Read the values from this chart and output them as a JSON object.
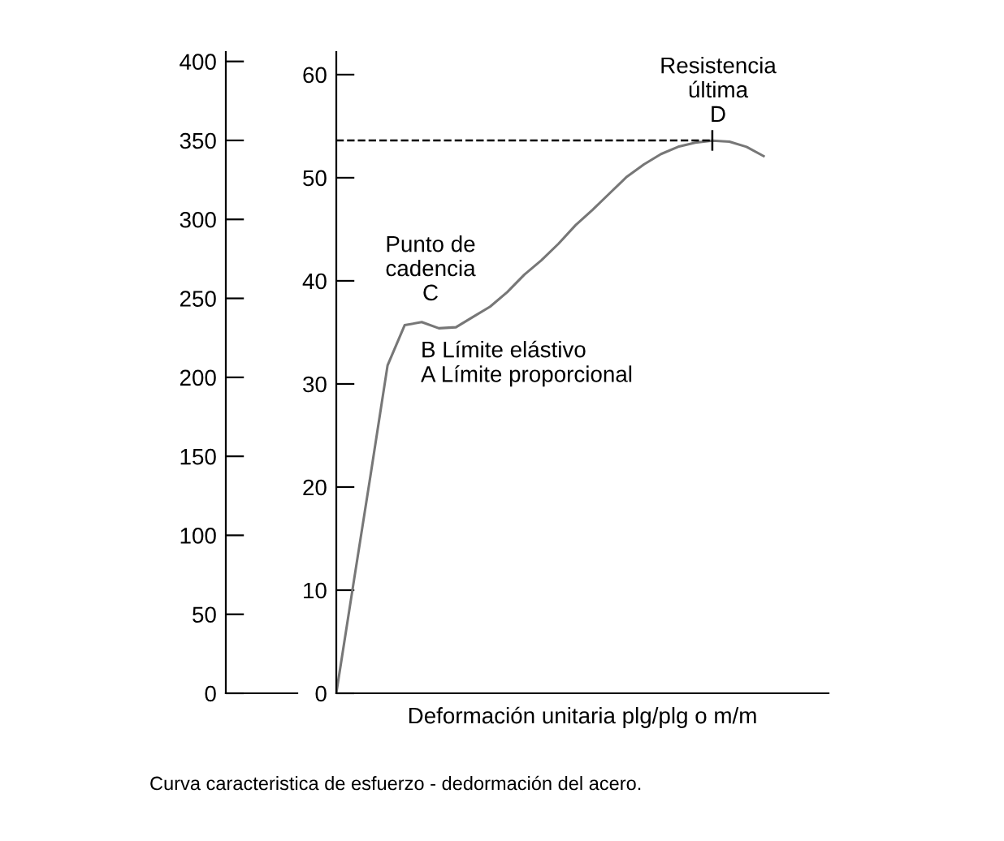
{
  "chart_data": {
    "type": "line",
    "xlabel": "Deformación unitaria plg/plg o m/m",
    "categories": [
      null,
      null,
      null,
      null,
      null,
      null,
      null,
      null,
      null,
      null,
      null,
      null,
      null,
      null,
      null,
      null,
      null,
      null,
      null,
      null,
      null,
      null,
      null,
      null,
      null,
      null
    ],
    "series": [
      {
        "color": "#777777",
        "axis": "y2",
        "values": [
          0,
          10.6,
          21.1,
          31.8,
          35.7,
          36.0,
          35.4,
          35.5,
          36.5,
          37.5,
          38.9,
          40.6,
          42.0,
          43.6,
          45.4,
          46.9,
          48.5,
          50.1,
          51.3,
          52.3,
          53.0,
          53.4,
          53.6,
          53.5,
          53.0,
          52.1
        ]
      }
    ],
    "ylim": [
      0,
      406
    ],
    "yticks": [
      0,
      50,
      100,
      150,
      200,
      250,
      300,
      350,
      400
    ],
    "y2lim": [
      0,
      62.2
    ],
    "y2ticks": [
      0,
      10,
      20,
      30,
      40,
      50,
      60
    ],
    "ref_lines": [
      {
        "axis": "y",
        "value": 350,
        "line_style": "dashed",
        "color": "#000000"
      }
    ],
    "annotations": [
      "Punto de\ncadencia\nC",
      "B Límite elástivo\nA Límite proporcional",
      "Resistencia\núltima\nD",
      "Curva caracteristica de esfuerzo - dedormación del acero."
    ],
    "grid": false,
    "legend": false,
    "marker": "none",
    "line_style": "solid"
  }
}
